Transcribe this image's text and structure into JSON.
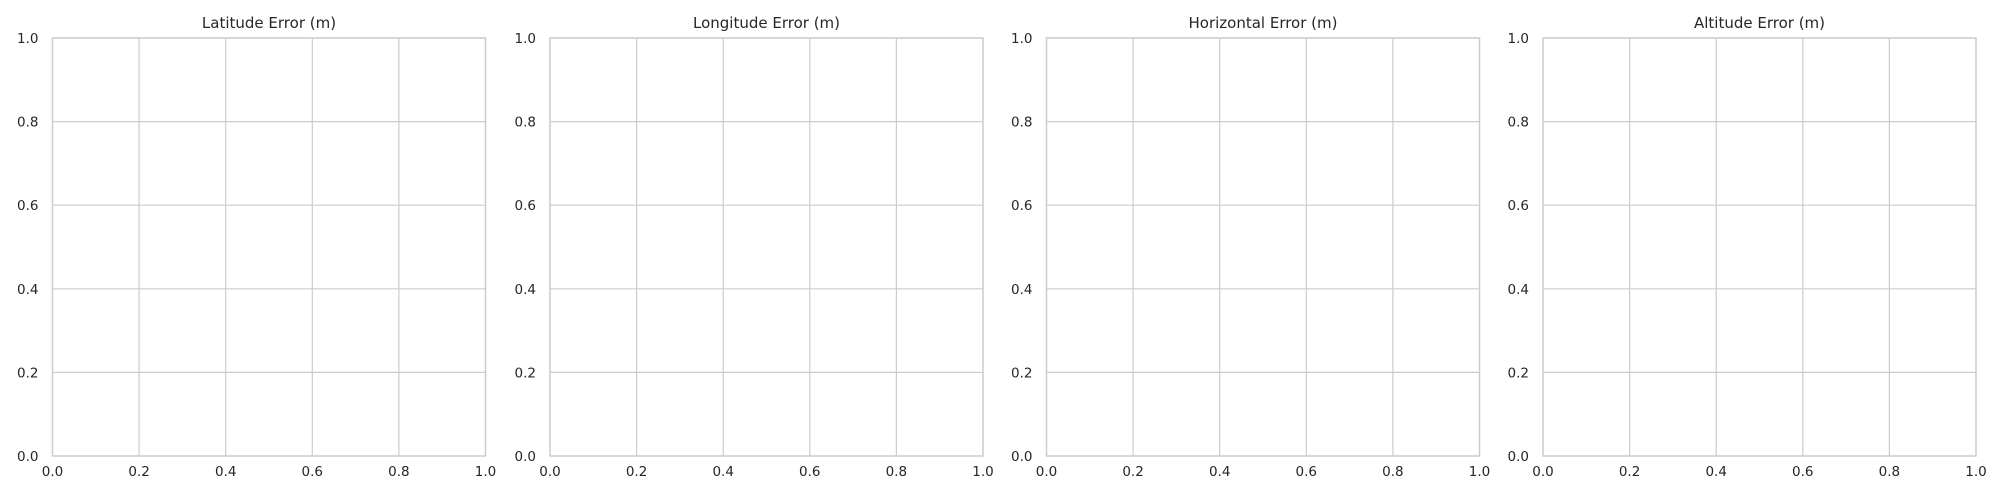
{
  "chart_data": [
    {
      "type": "line",
      "title": "Latitude Error (m)",
      "xlabel": "",
      "ylabel": "",
      "xlim": [
        0.0,
        1.0
      ],
      "ylim": [
        0.0,
        1.0
      ],
      "xticks": [
        "0.0",
        "0.2",
        "0.4",
        "0.6",
        "0.8",
        "1.0"
      ],
      "yticks": [
        "0.0",
        "0.2",
        "0.4",
        "0.6",
        "0.8",
        "1.0"
      ],
      "grid": true,
      "series": []
    },
    {
      "type": "line",
      "title": "Longitude Error (m)",
      "xlabel": "",
      "ylabel": "",
      "xlim": [
        0.0,
        1.0
      ],
      "ylim": [
        0.0,
        1.0
      ],
      "xticks": [
        "0.0",
        "0.2",
        "0.4",
        "0.6",
        "0.8",
        "1.0"
      ],
      "yticks": [
        "0.0",
        "0.2",
        "0.4",
        "0.6",
        "0.8",
        "1.0"
      ],
      "grid": true,
      "series": []
    },
    {
      "type": "line",
      "title": "Horizontal Error (m)",
      "xlabel": "",
      "ylabel": "",
      "xlim": [
        0.0,
        1.0
      ],
      "ylim": [
        0.0,
        1.0
      ],
      "xticks": [
        "0.0",
        "0.2",
        "0.4",
        "0.6",
        "0.8",
        "1.0"
      ],
      "yticks": [
        "0.0",
        "0.2",
        "0.4",
        "0.6",
        "0.8",
        "1.0"
      ],
      "grid": true,
      "series": []
    },
    {
      "type": "line",
      "title": "Altitude Error (m)",
      "xlabel": "",
      "ylabel": "",
      "xlim": [
        0.0,
        1.0
      ],
      "ylim": [
        0.0,
        1.0
      ],
      "xticks": [
        "0.0",
        "0.2",
        "0.4",
        "0.6",
        "0.8",
        "1.0"
      ],
      "yticks": [
        "0.0",
        "0.2",
        "0.4",
        "0.6",
        "0.8",
        "1.0"
      ],
      "grid": true,
      "series": []
    }
  ]
}
